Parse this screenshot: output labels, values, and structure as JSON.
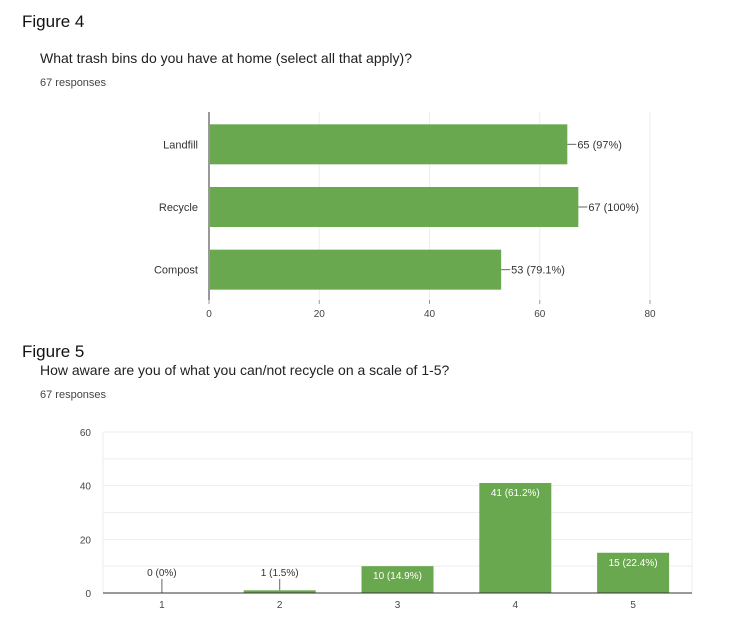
{
  "figures": [
    {
      "label": "Figure 4",
      "question": "What trash bins do you have at home (select all that apply)?",
      "responses": "67 responses"
    },
    {
      "label": "Figure 5",
      "question": "How aware are you of what you can/not recycle on a scale of 1-5?",
      "responses": "67 responses"
    }
  ],
  "colors": {
    "bar": "#6aa84f",
    "grid": "#eeeeee",
    "axis": "#333333",
    "tick_text": "#444444",
    "label_light": "#ffffff",
    "label_dark": "#333333"
  },
  "chart_data": [
    {
      "type": "bar",
      "orientation": "horizontal",
      "title": "What trash bins do you have at home (select all that apply)?",
      "categories": [
        "Landfill",
        "Recycle",
        "Compost"
      ],
      "values": [
        65,
        67,
        53
      ],
      "data_labels": [
        "65 (97%)",
        "67 (100%)",
        "53 (79.1%)"
      ],
      "xlim": [
        0,
        80
      ],
      "xticks": [
        "0",
        "20",
        "40",
        "60",
        "80"
      ],
      "grid": true
    },
    {
      "type": "bar",
      "orientation": "vertical",
      "title": "How aware are you of what you can/not recycle on a scale of 1-5?",
      "categories": [
        "1",
        "2",
        "3",
        "4",
        "5"
      ],
      "values": [
        0,
        1,
        10,
        41,
        15
      ],
      "data_labels": [
        "0 (0%)",
        "1 (1.5%)",
        "10 (14.9%)",
        "41 (61.2%)",
        "15 (22.4%)"
      ],
      "ylim": [
        0,
        60
      ],
      "yticks": [
        "0",
        "20",
        "40",
        "60"
      ],
      "grid": true
    }
  ]
}
